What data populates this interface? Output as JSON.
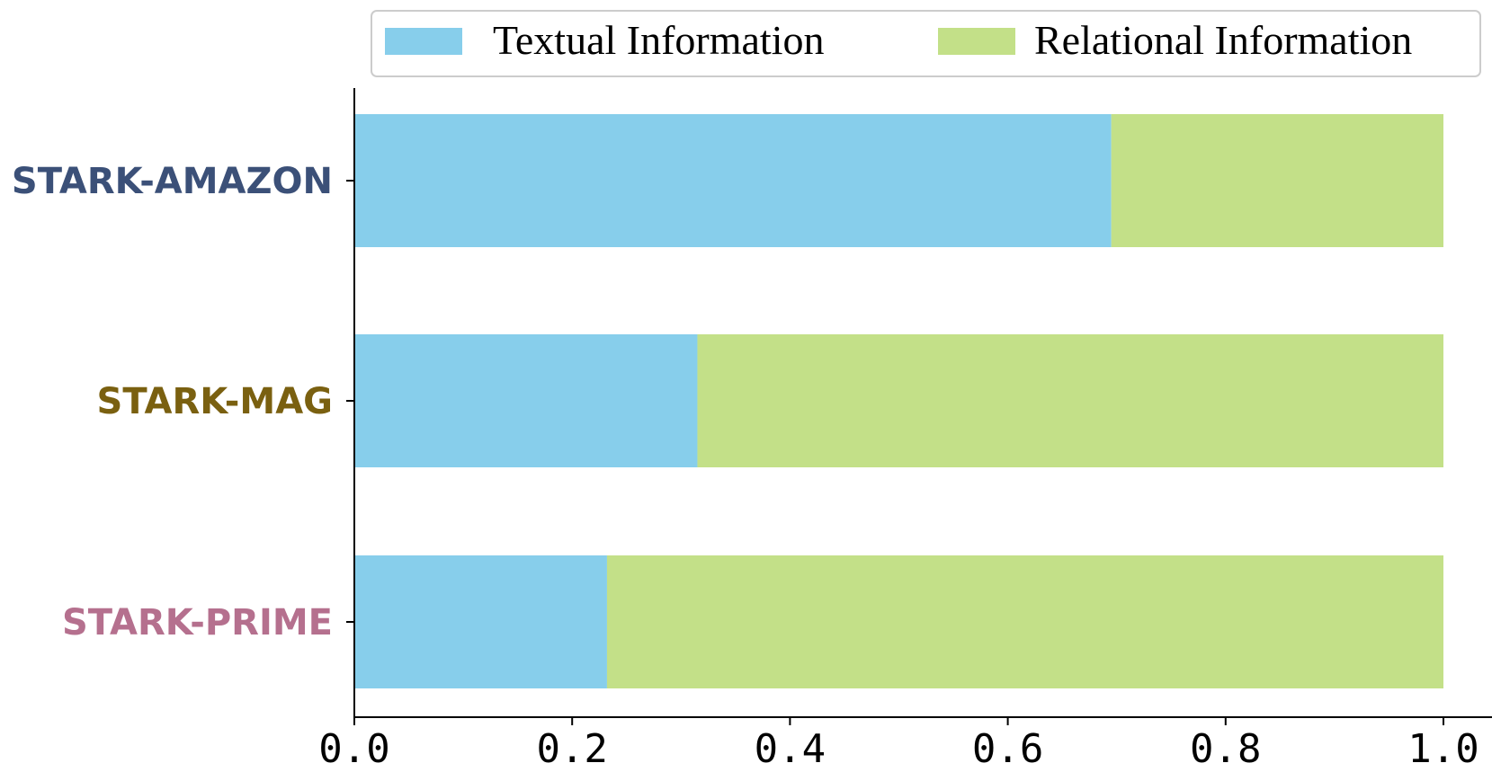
{
  "chart_data": {
    "type": "bar",
    "orientation": "horizontal",
    "stacked": true,
    "categories": [
      {
        "label": "STARK-AMAZON",
        "color": "#3b5078"
      },
      {
        "label": "STARK-MAG",
        "color": "#7a6010"
      },
      {
        "label": "STARK-PRIME",
        "color": "#b5708e"
      }
    ],
    "series": [
      {
        "name": "Textual Information",
        "color": "#87ceeb",
        "values": [
          0.695,
          0.315,
          0.232
        ]
      },
      {
        "name": "Relational Information",
        "color": "#c3e088",
        "values": [
          0.305,
          0.685,
          0.768
        ]
      }
    ],
    "xlim": [
      0.0,
      1.0
    ],
    "xticks": [
      "0.0",
      "0.2",
      "0.4",
      "0.6",
      "0.8",
      "1.0"
    ],
    "xlabel": "",
    "ylabel": "",
    "grid": false,
    "legend_position": "top"
  }
}
